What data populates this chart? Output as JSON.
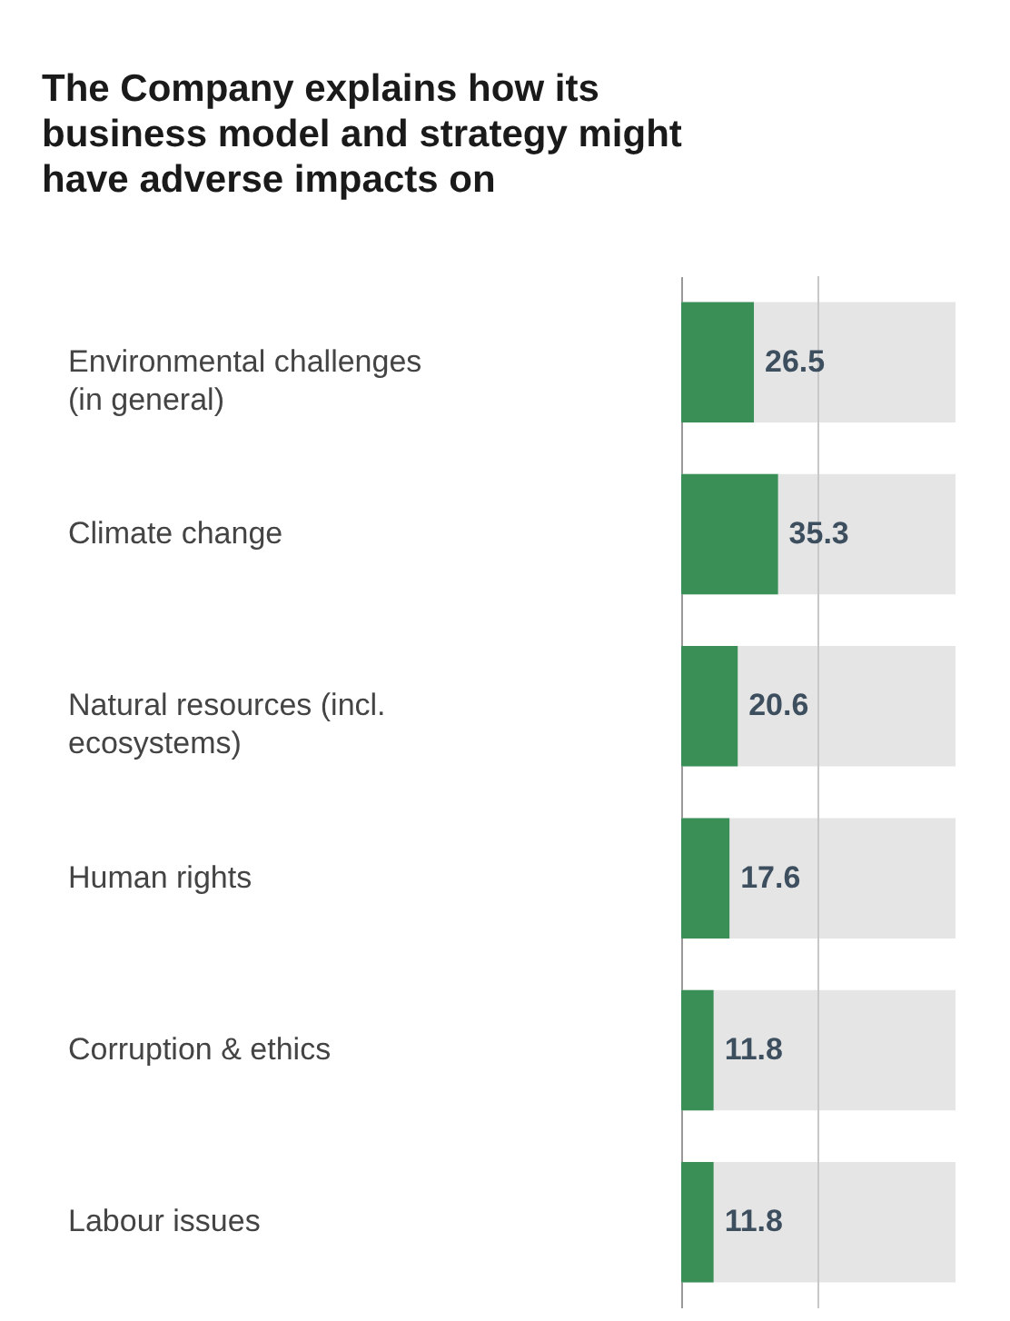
{
  "chart_data": {
    "type": "bar",
    "orientation": "horizontal",
    "title": "The Company explains how its business model and strategy might have adverse impacts on",
    "categories": [
      "Environmental challenges (in general)",
      "Climate change",
      "Natural resources (incl. ecosystems)",
      "Human rights",
      "Corruption & ethics",
      "Labour issues"
    ],
    "values": [
      26.5,
      35.3,
      20.6,
      17.6,
      11.8,
      11.8
    ],
    "color": "#3a8f57",
    "xlim": [
      0,
      100
    ],
    "ref_lines": [
      {
        "axis": "x",
        "value": 50,
        "color": "#c8c8c8"
      }
    ],
    "data_labels": true,
    "tick_labels": "y"
  }
}
